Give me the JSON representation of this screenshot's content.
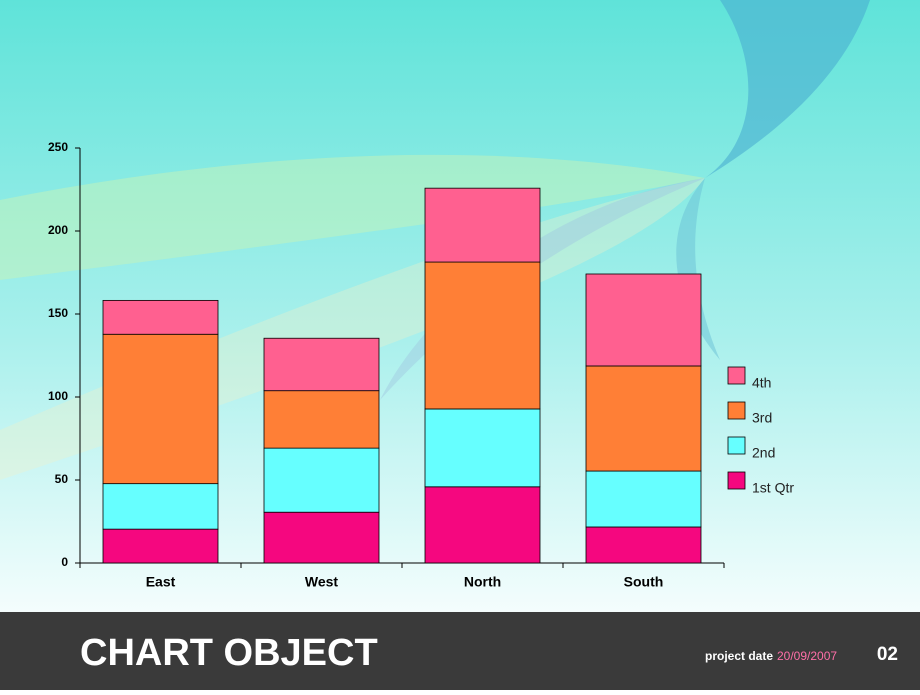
{
  "chart_data": {
    "type": "stacked_bar",
    "categories": [
      "East",
      "West",
      "North",
      "South"
    ],
    "series": [
      {
        "name": "1st Qtr",
        "color": "#f5077f",
        "values": [
          20.4,
          30.6,
          45.9,
          21.7
        ]
      },
      {
        "name": "2nd",
        "color": "#66ffff",
        "values": [
          27.4,
          38.6,
          46.9,
          33.7
        ]
      },
      {
        "name": "3rd",
        "color": "#ff7f36",
        "values": [
          90,
          34.6,
          88.5,
          63.3
        ]
      },
      {
        "name": "4th",
        "color": "#ff6090",
        "values": [
          20.4,
          31.6,
          44.5,
          55.4
        ]
      }
    ],
    "ylim": [
      0,
      250
    ],
    "yticks": [
      0,
      50,
      100,
      150,
      200,
      250
    ],
    "grid": false,
    "legend": "right"
  },
  "footer": {
    "title": "CHART OBJECT",
    "date_label": "project date",
    "date": "20/09/2007",
    "page": "02"
  }
}
